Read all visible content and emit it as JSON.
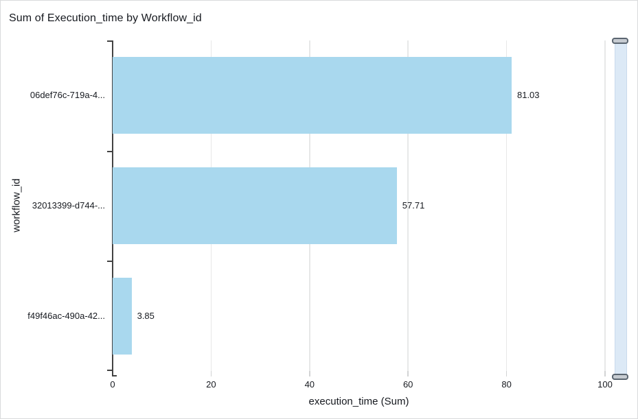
{
  "card": {
    "title": "Sum of Execution_time by Workflow_id"
  },
  "chart_data": {
    "type": "bar",
    "orientation": "horizontal",
    "title": "Sum of Execution_time by Workflow_id",
    "categories": [
      "06def76c-719a-4...",
      "32013399-d744-...",
      "f49f46ac-490a-42..."
    ],
    "values": [
      81.03,
      57.71,
      3.85
    ],
    "data_labels": [
      "81.03",
      "57.71",
      "3.85"
    ],
    "xlabel": "execution_time (Sum)",
    "ylabel": "workflow_id",
    "xlim": [
      0,
      100
    ],
    "xticks": [
      0,
      20,
      40,
      60,
      80,
      100
    ],
    "grid": "vertical",
    "legend": "none",
    "colors": {
      "bar": "#a9d8ee",
      "axis": "#424242",
      "gridline": "#e7e8e8",
      "text": "#16191f",
      "slider_track": "#dce9f6",
      "slider_handle": "#c6cbd1"
    }
  },
  "scroll_slider": {
    "orientation": "vertical",
    "position": "right"
  }
}
